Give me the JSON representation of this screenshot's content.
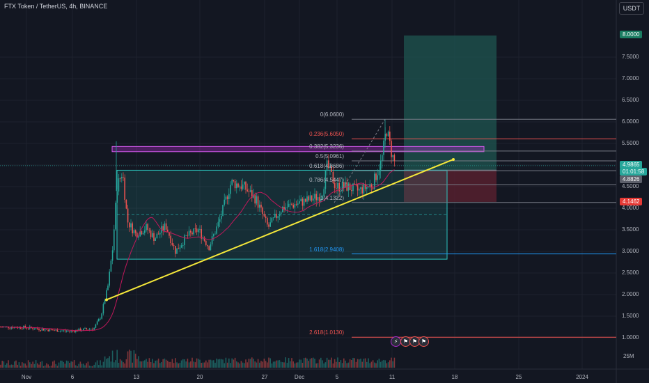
{
  "header": {
    "title": "FTX Token / TetherUS, 4h, BINANCE",
    "currency": "USDT"
  },
  "colors": {
    "background": "#131722",
    "up": "#26a69a",
    "down": "#ef5350",
    "trendline": "#f5e83a",
    "rectangle": "#2cc7c1",
    "resistance": "#b82ad1",
    "ma": "#c2185b",
    "target_zone": "#1f5550",
    "stop_zone": "#5a2130"
  },
  "price_badges": {
    "target": "8.0000",
    "last": "4.9865",
    "countdown": "01:01:58",
    "entry": "4.8826",
    "stop": "4.1462"
  },
  "volume_scale": "25M",
  "events": [
    "⚡",
    "⚑",
    "⚑",
    "⚑"
  ],
  "chart_data": {
    "type": "candlestick",
    "x_axis": [
      "Nov",
      "6",
      "13",
      "20",
      "27",
      "Dec",
      "5",
      "11",
      "18",
      "25",
      "2024"
    ],
    "y_axis": [
      "7.5000",
      "7.0000",
      "6.5000",
      "6.0000",
      "5.5000",
      "5.0000",
      "4.5000",
      "4.0000",
      "3.5000",
      "3.0000",
      "2.5000",
      "2.0000",
      "1.5000",
      "1.0000"
    ],
    "ylim": [
      0.75,
      8.55
    ],
    "fib_levels": [
      {
        "label": "0(6.0600)",
        "price": 6.06
      },
      {
        "label": "0.236(5.6050)",
        "price": 5.605
      },
      {
        "label": "0.382(5.3236)",
        "price": 5.3236
      },
      {
        "label": "0.5(5.0961)",
        "price": 5.0961
      },
      {
        "label": "0.618(4.8686)",
        "price": 4.8686
      },
      {
        "label": "0.786(4.5447)",
        "price": 4.5447
      },
      {
        "label": "1(4.1322)",
        "price": 4.1322
      },
      {
        "label": "1.618(2.9408)",
        "price": 2.9408
      },
      {
        "label": "2.618(1.0130)",
        "price": 1.013
      }
    ],
    "price_path": [
      [
        0,
        1.25
      ],
      [
        35,
        1.24
      ],
      [
        70,
        1.18
      ],
      [
        100,
        1.15
      ],
      [
        135,
        1.22
      ],
      [
        145,
        1.5
      ],
      [
        155,
        2.2
      ],
      [
        162,
        3.1
      ],
      [
        168,
        4.5
      ],
      [
        176,
        4.85
      ],
      [
        183,
        3.7
      ],
      [
        195,
        3.4
      ],
      [
        210,
        3.55
      ],
      [
        222,
        3.3
      ],
      [
        238,
        3.6
      ],
      [
        252,
        3.0
      ],
      [
        268,
        3.35
      ],
      [
        285,
        3.5
      ],
      [
        300,
        3.1
      ],
      [
        315,
        3.7
      ],
      [
        332,
        4.6
      ],
      [
        350,
        4.5
      ],
      [
        368,
        4.2
      ],
      [
        385,
        3.55
      ],
      [
        405,
        4.0
      ],
      [
        425,
        4.1
      ],
      [
        445,
        4.2
      ],
      [
        462,
        4.3
      ],
      [
        470,
        5.0
      ],
      [
        482,
        4.5
      ],
      [
        498,
        4.5
      ],
      [
        515,
        4.4
      ],
      [
        535,
        4.55
      ],
      [
        548,
        5.1
      ],
      [
        555,
        5.85
      ],
      [
        562,
        5.3
      ],
      [
        568,
        4.98
      ]
    ]
  }
}
